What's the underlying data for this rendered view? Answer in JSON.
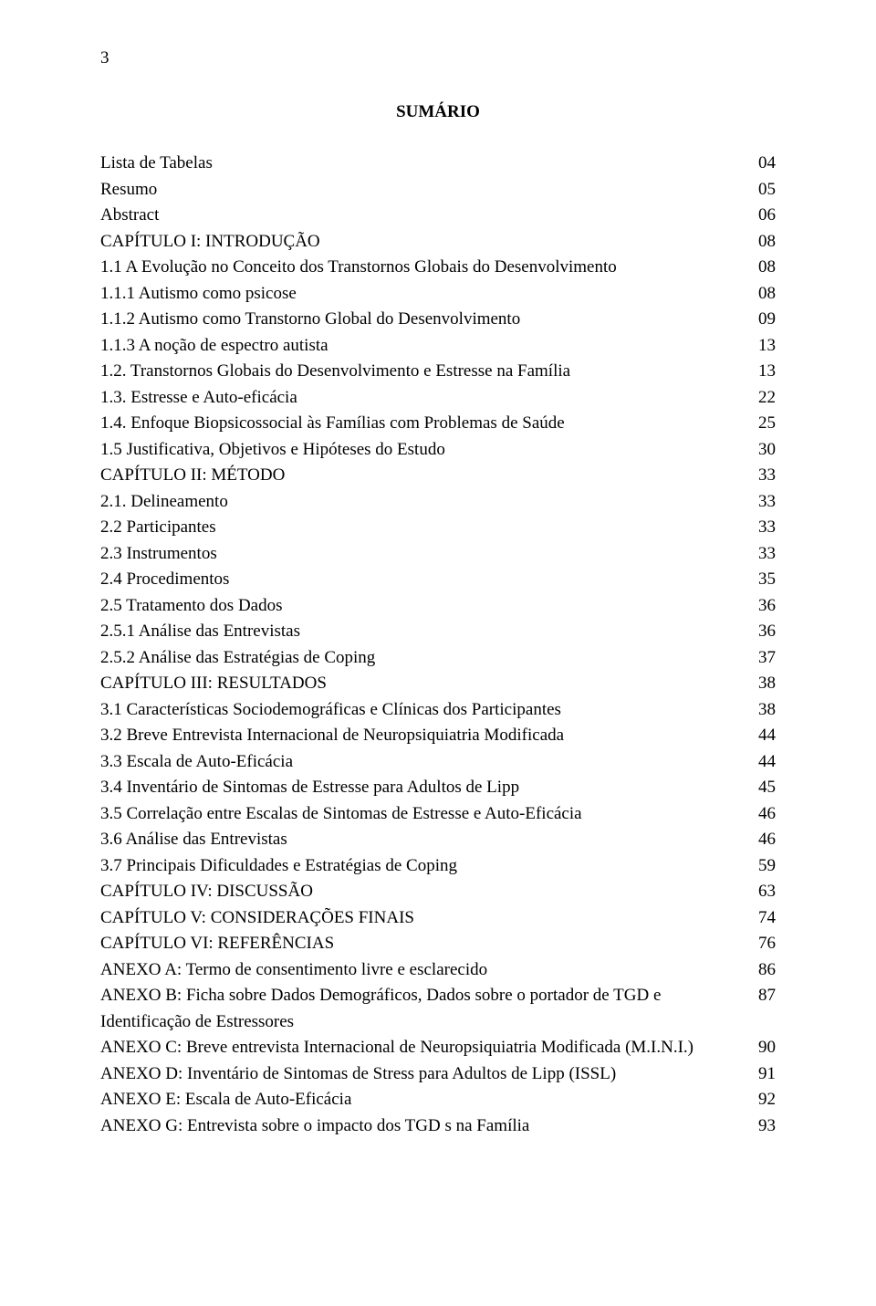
{
  "page_number_top": "3",
  "title": "SUMÁRIO",
  "background_color": "#ffffff",
  "text_color": "#000000",
  "font_family": "Times New Roman",
  "font_size_pt": 14,
  "toc": [
    {
      "label": "Lista de Tabelas",
      "page": "04"
    },
    {
      "label": "Resumo",
      "page": "05"
    },
    {
      "label": "Abstract",
      "page": "06"
    },
    {
      "label": "CAPÍTULO I: INTRODUÇÃO",
      "page": "08"
    },
    {
      "label": "1.1 A Evolução no Conceito dos Transtornos Globais do Desenvolvimento",
      "page": "08"
    },
    {
      "label": "1.1.1 Autismo como psicose",
      "page": "08"
    },
    {
      "label": "1.1.2 Autismo como Transtorno Global do Desenvolvimento",
      "page": "09"
    },
    {
      "label": "1.1.3 A noção de espectro autista",
      "page": "13"
    },
    {
      "label": "1.2. Transtornos Globais do Desenvolvimento e Estresse na Família",
      "page": "13"
    },
    {
      "label": "1.3. Estresse e Auto-eficácia",
      "page": "22"
    },
    {
      "label": "1.4. Enfoque Biopsicossocial às Famílias com Problemas de Saúde",
      "page": "25"
    },
    {
      "label": "1.5 Justificativa, Objetivos e Hipóteses do Estudo",
      "page": "30"
    },
    {
      "label": "CAPÍTULO II: MÉTODO",
      "page": "33"
    },
    {
      "label": "2.1. Delineamento",
      "page": "33"
    },
    {
      "label": "2.2 Participantes",
      "page": "33"
    },
    {
      "label": "2.3 Instrumentos",
      "page": "33"
    },
    {
      "label": "2.4 Procedimentos",
      "page": "35"
    },
    {
      "label": "2.5 Tratamento dos Dados",
      "page": "36"
    },
    {
      "label": "2.5.1 Análise das Entrevistas",
      "page": "36"
    },
    {
      "label": "2.5.2 Análise das Estratégias de Coping",
      "page": "37"
    },
    {
      "label": "CAPÍTULO III: RESULTADOS",
      "page": "38"
    },
    {
      "label": "3.1 Características Sociodemográficas e Clínicas dos Participantes",
      "page": "38"
    },
    {
      "label": "3.2 Breve Entrevista Internacional de Neuropsiquiatria Modificada",
      "page": "44"
    },
    {
      "label": "3.3 Escala de Auto-Eficácia",
      "page": "44"
    },
    {
      "label": "3.4 Inventário de Sintomas de Estresse para Adultos de Lipp",
      "page": "45"
    },
    {
      "label": "3.5 Correlação entre Escalas de Sintomas de Estresse e Auto-Eficácia",
      "page": "46"
    },
    {
      "label": "3.6 Análise das Entrevistas",
      "page": "46"
    },
    {
      "label": "3.7 Principais Dificuldades e Estratégias de Coping",
      "page": "59"
    },
    {
      "label": "CAPÍTULO IV: DISCUSSÃO",
      "page": "63"
    },
    {
      "label": "CAPÍTULO V: CONSIDERAÇÕES FINAIS",
      "page": "74"
    },
    {
      "label": "CAPÍTULO VI: REFERÊNCIAS",
      "page": "76"
    },
    {
      "label": "ANEXO A: Termo de consentimento livre e esclarecido",
      "page": "86"
    },
    {
      "label": "ANEXO B: Ficha sobre Dados Demográficos, Dados sobre o portador de TGD e Identificação de Estressores",
      "page": "87"
    },
    {
      "label": "ANEXO C: Breve entrevista Internacional de Neuropsiquiatria Modificada (M.I.N.I.)",
      "page": "90"
    },
    {
      "label": "ANEXO D: Inventário de Sintomas de Stress para Adultos de Lipp (ISSL)",
      "page": "91"
    },
    {
      "label": "ANEXO E: Escala de Auto-Eficácia",
      "page": "92"
    },
    {
      "label": "ANEXO G: Entrevista sobre o impacto dos TGD s na Família",
      "page": "93"
    }
  ]
}
